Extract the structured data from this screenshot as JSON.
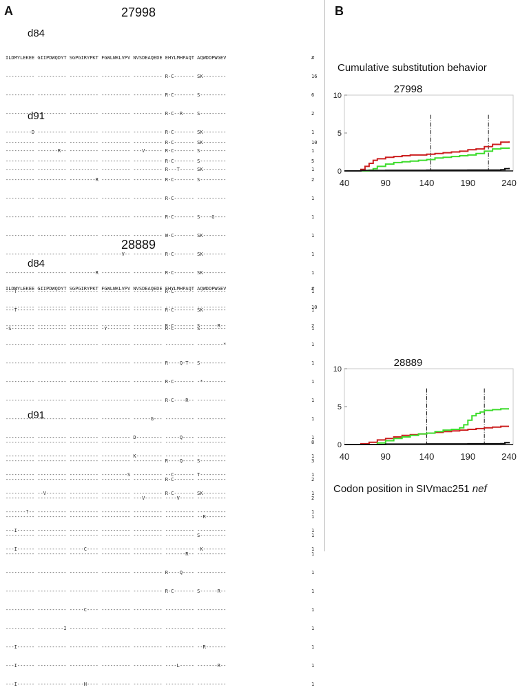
{
  "panels": {
    "a": "A",
    "b": "B"
  },
  "header_line": "ILDMYLEKEE GIIPDWQDYT SGPGIRYPKT FGWLWKLVPV NVSDEAQEDE EHYLMHPAQT AQWDDPWGEV",
  "count_header": "#",
  "blocks": [
    {
      "animal": "27998",
      "day": "d84",
      "rows": [
        [
          "---------- ---------- ---------- ---------- ---------- R-C------- SK--------",
          "16"
        ],
        [
          "---------- ---------- ---------- ---------- ---------- R-C------- S---------",
          "6"
        ],
        [
          "---------- ---------- ---------- ---------- ---------- R-C--R---- S---------",
          "2"
        ],
        [
          "---------D ---------- ---------- ---------- ---------- R-C------- SK--------",
          "1"
        ],
        [
          "---------- -------R-- ---------- ---------- ---V------ R-C------- S---------",
          "1"
        ],
        [
          "---------- ---------- ---------- ---------- ---------- R---T----- SK--------",
          "1"
        ]
      ]
    },
    {
      "animal": "",
      "day": "d91",
      "rows": [
        [
          "---------- ---------- ---------- ---------- ---------- R-C------- SK--------",
          "10"
        ],
        [
          "---------- ---------- ---------- ---------- ---------- R-C------- S---------",
          "5"
        ],
        [
          "---------- ---------- ---------R ---------- ---------- R-C------- S---------",
          "2"
        ],
        [
          "---------- ---------- ---------- ---------- ---------- R-C------- ----------",
          "1"
        ],
        [
          "---------- ---------- ---------- ---------- ---------- R-C------- S----G----",
          "1"
        ],
        [
          "---------- ---------- ---------- ---------- ---------- W-C------- SK--------",
          "1"
        ],
        [
          "---------- ---------- ---------- -------V-- ---------- R-C------- SK--------",
          "1"
        ],
        [
          "---------- ---------- ---------R ---------- ---------- R-C------- SK--------",
          "1"
        ],
        [
          "---T------ ---------- ---------- ---------- ---------- R-C------- ----------",
          "1"
        ],
        [
          "---T------ ---------- ---------- ---------- ---------- R-C------- SK--------",
          "1"
        ],
        [
          "-S-------- ---------- ---------- -Y-------- ---------- R-C------- S---------",
          "1"
        ]
      ]
    },
    {
      "animal": "28889",
      "day": "d84",
      "rows": [
        [
          "---------- ---------- ---------- ---------- ---------- ---------- ----------",
          "10"
        ],
        [
          "---------- ---------- ---------- ---------- ---------- R-C------- S------R--",
          "2"
        ],
        [
          "---------- ---------- ---------- ---------- ---------- ---------- ---------*",
          "1"
        ],
        [
          "---------- ---------- ---------- ---------- ---------- R----Q-T-- S---------",
          "1"
        ],
        [
          "---------- ---------- ---------- ---------- ---------- R-C------- -*--------",
          "1"
        ],
        [
          "---------- ---------- ---------- ---------- ---------- R-C----R-- ----------",
          "1"
        ],
        [
          "---------- ---------- ---------- ---------- ------G--- ---------- ----------",
          "1"
        ],
        [
          "---------- ---------- ---------- ---------- D--------- -----Q---- ----------",
          "1"
        ],
        [
          "---------- ---------- ---------- ---------- K--------- ---------- ----------",
          "1"
        ],
        [
          "---------- ---------- ---------- ---------S ---------- --C------- T---------",
          "1"
        ],
        [
          "---------- --V------- ---------- ---------- ---------- R-C------- SK--------",
          "1"
        ],
        [
          "-------?-- ---------- ---------- ---------- ---------- ---------- ----------",
          "1"
        ],
        [
          "---I------ ---------- ---------- ---------- ---------- ---------- ----------",
          "1"
        ],
        [
          "---I------ ---------- -----C---- ---------- ---------- ---------- -K--------",
          "1"
        ]
      ]
    },
    {
      "animal": "",
      "day": "d91",
      "rows": [
        [
          "---------- ---------- ---------- ---------- ---------- ---------- ----------",
          "8"
        ],
        [
          "---------- ---------- ---------- ---------- ---------- R----Q---- S---------",
          "3"
        ],
        [
          "---------- ---------- ---------- ---------- ---------- R-C------- ----------",
          "2"
        ],
        [
          "---------- ---------- ---------- ---------- ---V------ ----V----- ----------",
          "2"
        ],
        [
          "---------- ---------- ---------- ---------- ---------- ---------- --R-------",
          "1"
        ],
        [
          "---------- ---------- ---------- ---------- ---------- ---------- S---------",
          "1"
        ],
        [
          "---------- ---------- ---------- ---------- ---------- -------R-- ----------",
          "1"
        ],
        [
          "---------- ---------- ---------- ---------- ---------- R----Q---- ----------",
          "1"
        ],
        [
          "---------- ---------- ---------- ---------- ---------- R-C------- S------R--",
          "1"
        ],
        [
          "---------- ---------- -----C---- ---------- ---------- ---------- ----------",
          "1"
        ],
        [
          "---------- ---------I ---------- ---------- ---------- ---------- ----------",
          "1"
        ],
        [
          "---I------ ---------- ---------- ---------- ---------- ---------- --R-------",
          "1"
        ],
        [
          "---I------ ---------- ---------- ---------- ---------- ----L----- -------R--",
          "1"
        ],
        [
          "---I------ ---------- -----H---- ---------- ---------- ---------- ----------",
          "1"
        ]
      ]
    }
  ],
  "caption_top": "Cumulative substitution behavior",
  "caption_bottom_prefix": "Codon position in SIVmac251 ",
  "caption_bottom_italic": "nef",
  "colors": {
    "red": "#cc1f1f",
    "green": "#3ddc2c",
    "black": "#111111"
  },
  "chart_data": [
    {
      "type": "line",
      "title": "27998",
      "xlim": [
        40,
        245
      ],
      "ylim": [
        0,
        10
      ],
      "xticks": [
        40,
        90,
        140,
        190,
        240
      ],
      "yticks": [
        0,
        5,
        10
      ],
      "vlines": [
        145,
        215
      ],
      "series": [
        {
          "color": "red",
          "x": [
            40,
            60,
            65,
            70,
            75,
            80,
            90,
            100,
            110,
            120,
            140,
            150,
            160,
            170,
            180,
            190,
            200,
            210,
            220,
            230,
            240
          ],
          "y": [
            0,
            0.2,
            0.6,
            1.0,
            1.4,
            1.6,
            1.8,
            1.9,
            2.0,
            2.1,
            2.2,
            2.3,
            2.4,
            2.5,
            2.6,
            2.8,
            2.9,
            3.2,
            3.5,
            3.8,
            3.9
          ]
        },
        {
          "color": "green",
          "x": [
            40,
            70,
            75,
            80,
            90,
            100,
            110,
            120,
            130,
            140,
            150,
            160,
            170,
            180,
            190,
            200,
            210,
            220,
            230,
            240
          ],
          "y": [
            0,
            0.1,
            0.3,
            0.6,
            0.9,
            1.1,
            1.2,
            1.3,
            1.4,
            1.5,
            1.7,
            1.8,
            1.9,
            2.0,
            2.1,
            2.3,
            2.6,
            2.9,
            3.0,
            3.1
          ]
        },
        {
          "color": "black",
          "x": [
            40,
            60,
            90,
            140,
            190,
            230,
            235,
            240
          ],
          "y": [
            0,
            0.05,
            0.08,
            0.1,
            0.12,
            0.15,
            0.3,
            0.4
          ]
        }
      ]
    },
    {
      "type": "line",
      "title": "28889",
      "xlim": [
        40,
        245
      ],
      "ylim": [
        0,
        10
      ],
      "xticks": [
        40,
        90,
        140,
        190,
        240
      ],
      "yticks": [
        0,
        5,
        10
      ],
      "vlines": [
        140,
        210
      ],
      "series": [
        {
          "color": "red",
          "x": [
            40,
            60,
            70,
            80,
            90,
            100,
            110,
            120,
            130,
            140,
            150,
            160,
            170,
            180,
            190,
            200,
            210,
            220,
            230,
            240
          ],
          "y": [
            0,
            0.1,
            0.3,
            0.6,
            0.8,
            1.0,
            1.2,
            1.3,
            1.4,
            1.5,
            1.6,
            1.7,
            1.8,
            1.9,
            2.0,
            2.1,
            2.2,
            2.3,
            2.4,
            2.4
          ]
        },
        {
          "color": "green",
          "x": [
            40,
            80,
            90,
            100,
            110,
            120,
            130,
            140,
            150,
            160,
            170,
            180,
            185,
            190,
            195,
            200,
            205,
            210,
            220,
            230,
            240
          ],
          "y": [
            0,
            0.2,
            0.5,
            0.8,
            1.0,
            1.2,
            1.4,
            1.5,
            1.7,
            1.9,
            2.0,
            2.2,
            2.6,
            3.2,
            3.8,
            4.1,
            4.3,
            4.5,
            4.6,
            4.7,
            4.7
          ]
        },
        {
          "color": "black",
          "x": [
            40,
            90,
            140,
            190,
            230,
            235,
            240
          ],
          "y": [
            0,
            0.05,
            0.08,
            0.1,
            0.12,
            0.25,
            0.35
          ]
        }
      ]
    }
  ]
}
